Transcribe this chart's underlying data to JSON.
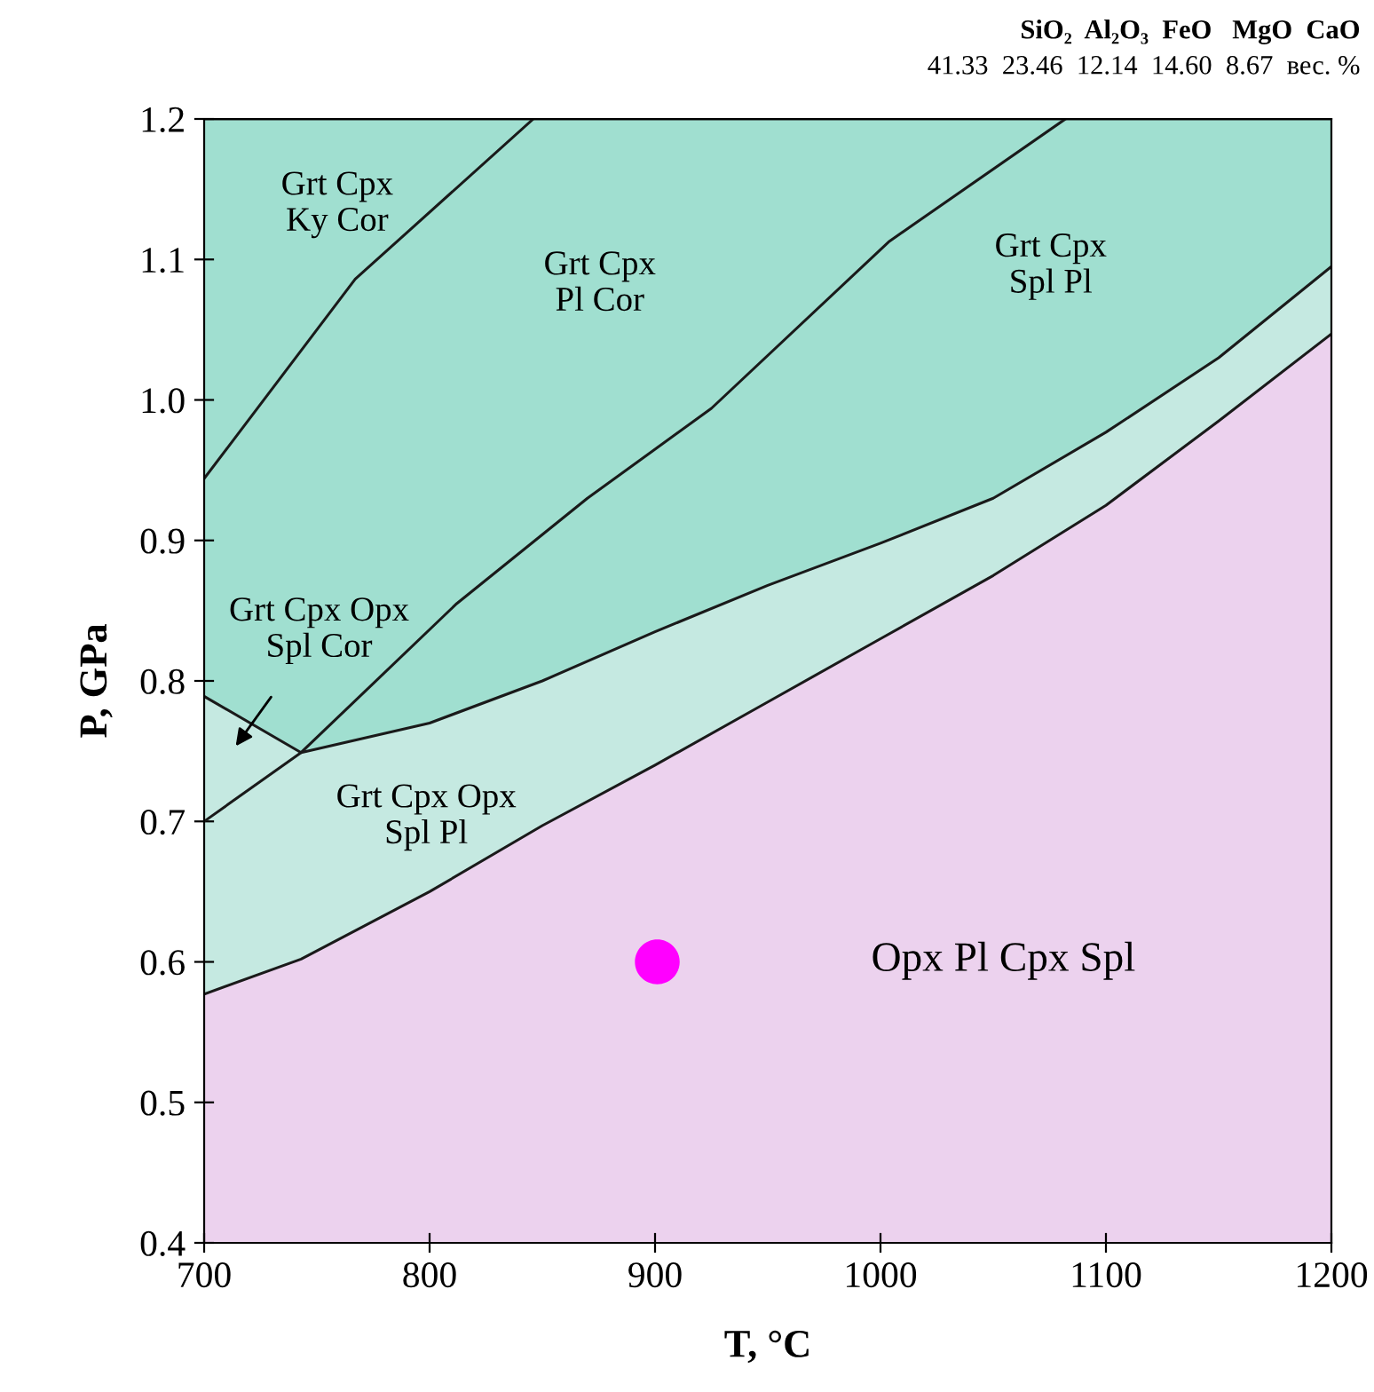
{
  "chart_data": {
    "type": "line",
    "xlabel": "T, °C",
    "ylabel": "P, GPa",
    "xlim": [
      700,
      1200
    ],
    "xticks": [
      700,
      800,
      900,
      1000,
      1100,
      1200
    ],
    "ylim": [
      0.4,
      1.2
    ],
    "yticks": [
      0.4,
      0.5,
      0.6,
      0.7,
      0.8,
      0.9,
      {
        "value": 1.0,
        "label": "1.0"
      },
      1.1,
      1.2
    ],
    "grid": false,
    "legend": false,
    "series": [
      {
        "type": "area",
        "color": "#a0dfd0",
        "x": [
          700,
          1200
        ],
        "values": [
          1.2,
          1.2
        ]
      },
      {
        "type": "area",
        "color": "#c5e9e1",
        "x": [
          700,
          743,
          800,
          850,
          900,
          950,
          1000,
          1050,
          1100,
          1150,
          1200
        ],
        "values": [
          0.789,
          0.749,
          0.77,
          0.8,
          0.835,
          0.868,
          0.898,
          0.93,
          0.977,
          1.03,
          1.095
        ]
      },
      {
        "type": "area",
        "color": "#ecd2ee",
        "x": [
          700,
          743,
          800,
          850,
          900,
          950,
          1000,
          1050,
          1100,
          1150,
          1200
        ],
        "values": [
          0.577,
          0.602,
          0.65,
          0.697,
          0.74,
          0.785,
          0.83,
          0.875,
          0.925,
          0.985,
          1.047
        ]
      },
      {
        "color": "#1a1a1a",
        "x": [
          700,
          743,
          812,
          870,
          925,
          1004,
          1082
        ],
        "values": [
          0.7,
          0.749,
          0.855,
          0.93,
          0.994,
          1.113,
          1.2
        ]
      },
      {
        "color": "#1a1a1a",
        "x": [
          700,
          767,
          846
        ],
        "values": [
          0.944,
          1.086,
          1.2
        ]
      },
      {
        "type": "scatter",
        "color": "#ff00ff",
        "x": [
          901
        ],
        "values": [
          0.6
        ]
      }
    ],
    "annotations": [
      "Grt Cpx\nKy Cor",
      "Grt Cpx\nPl Cor",
      "Grt Cpx\nSpl Pl",
      "Grt Cpx Opx\nSpl Cor",
      "Grt Cpx Opx\nSpl Pl",
      "Opx Pl Cpx Spl",
      "SiO₂  Al₂O₃  FeO   MgO  CaO",
      "41.33  23.46  12.14  14.60  8.67  вес. %"
    ]
  }
}
